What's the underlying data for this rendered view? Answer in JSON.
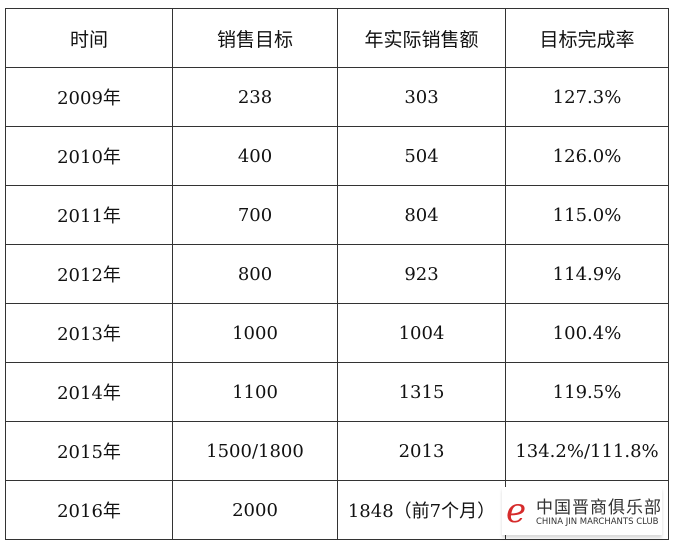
{
  "table": {
    "headers": [
      "时间",
      "销售目标",
      "年实际销售额",
      "目标完成率"
    ],
    "rows": [
      [
        "2009年",
        "238",
        "303",
        "127.3%"
      ],
      [
        "2010年",
        "400",
        "504",
        "126.0%"
      ],
      [
        "2011年",
        "700",
        "804",
        "115.0%"
      ],
      [
        "2012年",
        "800",
        "923",
        "114.9%"
      ],
      [
        "2013年",
        "1000",
        "1004",
        "100.4%"
      ],
      [
        "2014年",
        "1100",
        "1315",
        "119.5%"
      ],
      [
        "2015年",
        "1500/1800",
        "2013",
        "134.2%/111.8%"
      ],
      [
        "2016年",
        "2000",
        "1848（前7个月）",
        ""
      ]
    ]
  },
  "watermark": {
    "name_cn": "中国晋商俱乐部",
    "name_en": "CHINA JIN MARCHANTS CLUB",
    "brand_color": "#d62b2b"
  }
}
